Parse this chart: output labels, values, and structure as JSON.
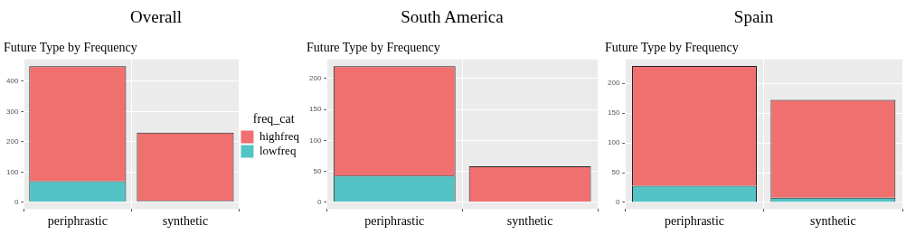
{
  "chart_data": [
    {
      "type": "bar",
      "title": "Overall",
      "subtitle": "Future Type by Frequency",
      "categories": [
        "periphrastic",
        "synthetic"
      ],
      "stacked": true,
      "legend": "right",
      "legend_title": "freq_cat",
      "grid": true,
      "ylim": [
        -22,
        472
      ],
      "yticks": [
        0,
        100,
        200,
        300,
        400
      ],
      "series": [
        {
          "name": "lowfreq",
          "color": "#53c3c6",
          "values": [
            70,
            5
          ]
        },
        {
          "name": "highfreq",
          "color": "#f07070",
          "values": [
            380,
            225
          ]
        }
      ]
    },
    {
      "type": "bar",
      "title": "South America",
      "subtitle": "Future Type by Frequency",
      "categories": [
        "periphrastic",
        "synthetic"
      ],
      "stacked": true,
      "grid": true,
      "ylim": [
        -11,
        231
      ],
      "yticks": [
        0,
        50,
        100,
        150,
        200
      ],
      "series": [
        {
          "color": "#53c3c6",
          "values": [
            43,
            0
          ]
        },
        {
          "color": "#f07070",
          "values": [
            177,
            58
          ]
        }
      ]
    },
    {
      "type": "bar",
      "title": "Spain",
      "subtitle": "Future Type by Frequency",
      "categories": [
        "periphrastic",
        "synthetic"
      ],
      "stacked": true,
      "grid": true,
      "ylim": [
        -11,
        240
      ],
      "yticks": [
        0,
        50,
        100,
        150,
        200
      ],
      "series": [
        {
          "color": "#53c3c6",
          "values": [
            28,
            8
          ]
        },
        {
          "color": "#f07070",
          "values": [
            201,
            164
          ]
        }
      ]
    }
  ]
}
